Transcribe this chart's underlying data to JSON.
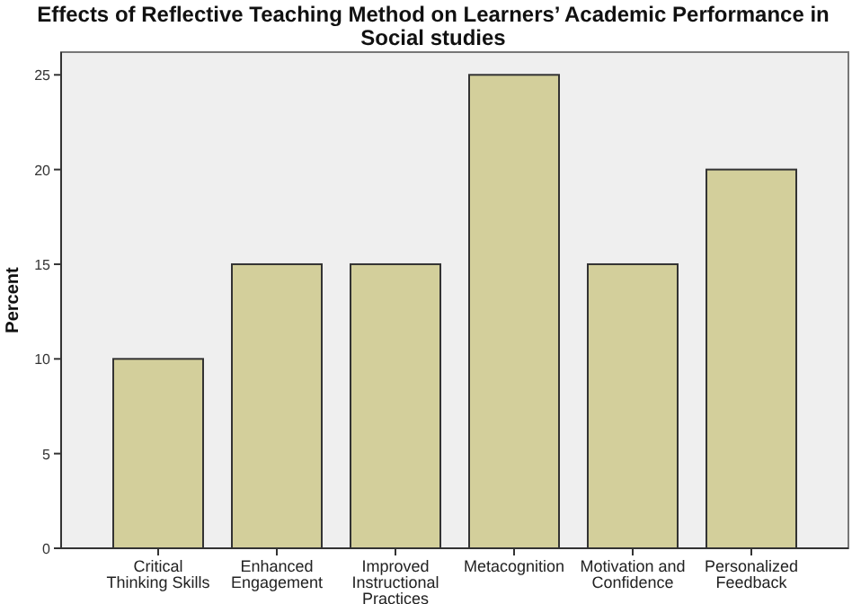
{
  "chart_data": {
    "type": "bar",
    "title": "Effects of Reflective Teaching Method on Learners’ Academic Performance in Social studies",
    "ylabel": "Percent",
    "categories": [
      "Critical Thinking Skills",
      "Enhanced Engagement",
      "Improved Instructional Practices",
      "Metacognition",
      "Motivation and Confidence",
      "Personalized Feedback"
    ],
    "values": [
      10,
      15,
      15,
      25,
      15,
      20
    ],
    "color": "#d3cf9b",
    "ylim": [
      0,
      26.2
    ],
    "yticks": [
      0,
      5,
      10,
      15,
      20,
      25
    ],
    "grid": false
  }
}
